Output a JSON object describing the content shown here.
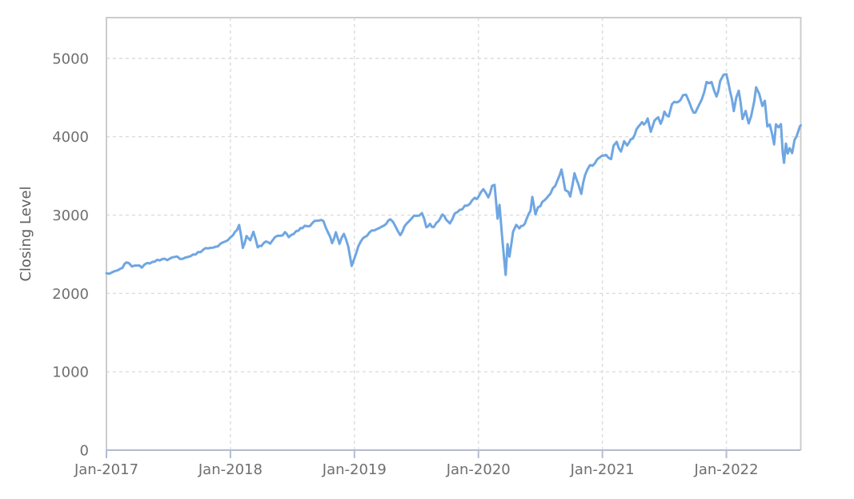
{
  "chart_data": {
    "type": "line",
    "title": "",
    "xlabel": "",
    "ylabel": "Closing Level",
    "legend": "none",
    "grid": "dashed",
    "xlim": [
      2017.0,
      2022.6
    ],
    "ylim": [
      0,
      5520
    ],
    "y_ticks": [
      0,
      1000,
      2000,
      3000,
      4000,
      5000
    ],
    "x_tick_positions": [
      2017,
      2018,
      2019,
      2020,
      2021,
      2022
    ],
    "x_tick_labels": [
      "Jan-2017",
      "Jan-2018",
      "Jan-2019",
      "Jan-2020",
      "Jan-2021",
      "Jan-2022"
    ],
    "colors": {
      "line": "#6fa6e2",
      "plot_border": "#cccccc",
      "grid": "#dcdcdc",
      "axis_line": "#b3bcd2",
      "tick_label": "#6f6f6f",
      "axis_title": "#5f5f5f",
      "background": "#ffffff"
    },
    "line_width": 3,
    "noise_amplitude": 24,
    "series": [
      {
        "name": "Closing Level",
        "points": [
          [
            2017.0,
            2257
          ],
          [
            2017.045,
            2269
          ],
          [
            2017.09,
            2294
          ],
          [
            2017.13,
            2328
          ],
          [
            2017.16,
            2396
          ],
          [
            2017.205,
            2344
          ],
          [
            2017.25,
            2356
          ],
          [
            2017.285,
            2329
          ],
          [
            2017.33,
            2389
          ],
          [
            2017.37,
            2402
          ],
          [
            2017.41,
            2430
          ],
          [
            2017.45,
            2438
          ],
          [
            2017.49,
            2425
          ],
          [
            2017.53,
            2460
          ],
          [
            2017.57,
            2472
          ],
          [
            2017.615,
            2441
          ],
          [
            2017.655,
            2465
          ],
          [
            2017.7,
            2497
          ],
          [
            2017.74,
            2529
          ],
          [
            2017.78,
            2557
          ],
          [
            2017.82,
            2575
          ],
          [
            2017.86,
            2584
          ],
          [
            2017.9,
            2602
          ],
          [
            2017.94,
            2652
          ],
          [
            2017.98,
            2680
          ],
          [
            2018.02,
            2743
          ],
          [
            2018.07,
            2873
          ],
          [
            2018.1,
            2581
          ],
          [
            2018.13,
            2732
          ],
          [
            2018.16,
            2678
          ],
          [
            2018.185,
            2787
          ],
          [
            2018.22,
            2588
          ],
          [
            2018.25,
            2605
          ],
          [
            2018.285,
            2663
          ],
          [
            2018.32,
            2635
          ],
          [
            2018.36,
            2720
          ],
          [
            2018.4,
            2735
          ],
          [
            2018.44,
            2782
          ],
          [
            2018.47,
            2718
          ],
          [
            2018.51,
            2759
          ],
          [
            2018.55,
            2802
          ],
          [
            2018.58,
            2833
          ],
          [
            2018.62,
            2857
          ],
          [
            2018.66,
            2897
          ],
          [
            2018.715,
            2931
          ],
          [
            2018.75,
            2924
          ],
          [
            2018.79,
            2768
          ],
          [
            2018.82,
            2641
          ],
          [
            2018.85,
            2781
          ],
          [
            2018.88,
            2633
          ],
          [
            2018.915,
            2760
          ],
          [
            2018.95,
            2600
          ],
          [
            2018.978,
            2351
          ],
          [
            2019.0,
            2448
          ],
          [
            2019.03,
            2596
          ],
          [
            2019.07,
            2707
          ],
          [
            2019.12,
            2776
          ],
          [
            2019.16,
            2804
          ],
          [
            2019.2,
            2834
          ],
          [
            2019.24,
            2867
          ],
          [
            2019.29,
            2946
          ],
          [
            2019.33,
            2860
          ],
          [
            2019.37,
            2744
          ],
          [
            2019.42,
            2890
          ],
          [
            2019.46,
            2954
          ],
          [
            2019.5,
            2990
          ],
          [
            2019.545,
            3026
          ],
          [
            2019.58,
            2845
          ],
          [
            2019.61,
            2889
          ],
          [
            2019.64,
            2847
          ],
          [
            2019.68,
            2926
          ],
          [
            2019.71,
            3007
          ],
          [
            2019.74,
            2940
          ],
          [
            2019.77,
            2893
          ],
          [
            2019.81,
            3022
          ],
          [
            2019.85,
            3067
          ],
          [
            2019.89,
            3120
          ],
          [
            2019.93,
            3141
          ],
          [
            2019.97,
            3221
          ],
          [
            2020.0,
            3231
          ],
          [
            2020.04,
            3330
          ],
          [
            2020.08,
            3226
          ],
          [
            2020.11,
            3373
          ],
          [
            2020.13,
            3386
          ],
          [
            2020.155,
            2954
          ],
          [
            2020.17,
            3130
          ],
          [
            2020.19,
            2741
          ],
          [
            2020.205,
            2481
          ],
          [
            2020.22,
            2237
          ],
          [
            2020.235,
            2630
          ],
          [
            2020.25,
            2470
          ],
          [
            2020.28,
            2790
          ],
          [
            2020.305,
            2874
          ],
          [
            2020.33,
            2831
          ],
          [
            2020.36,
            2864
          ],
          [
            2020.39,
            2955
          ],
          [
            2020.42,
            3055
          ],
          [
            2020.435,
            3232
          ],
          [
            2020.46,
            3009
          ],
          [
            2020.48,
            3098
          ],
          [
            2020.5,
            3116
          ],
          [
            2020.53,
            3185
          ],
          [
            2020.55,
            3216
          ],
          [
            2020.58,
            3271
          ],
          [
            2020.62,
            3373
          ],
          [
            2020.655,
            3508
          ],
          [
            2020.67,
            3581
          ],
          [
            2020.7,
            3319
          ],
          [
            2020.725,
            3298
          ],
          [
            2020.74,
            3237
          ],
          [
            2020.775,
            3534
          ],
          [
            2020.805,
            3400
          ],
          [
            2020.83,
            3270
          ],
          [
            2020.86,
            3510
          ],
          [
            2020.88,
            3585
          ],
          [
            2020.9,
            3638
          ],
          [
            2020.94,
            3662
          ],
          [
            2020.975,
            3732
          ],
          [
            2020.995,
            3756
          ],
          [
            2021.03,
            3768
          ],
          [
            2021.07,
            3714
          ],
          [
            2021.09,
            3886
          ],
          [
            2021.115,
            3935
          ],
          [
            2021.15,
            3811
          ],
          [
            2021.175,
            3943
          ],
          [
            2021.2,
            3889
          ],
          [
            2021.23,
            3969
          ],
          [
            2021.26,
            4020
          ],
          [
            2021.29,
            4129
          ],
          [
            2021.32,
            4185
          ],
          [
            2021.35,
            4181
          ],
          [
            2021.365,
            4233
          ],
          [
            2021.39,
            4063
          ],
          [
            2021.42,
            4204
          ],
          [
            2021.45,
            4247
          ],
          [
            2021.47,
            4166
          ],
          [
            2021.5,
            4320
          ],
          [
            2021.535,
            4258
          ],
          [
            2021.56,
            4412
          ],
          [
            2021.6,
            4437
          ],
          [
            2021.63,
            4468
          ],
          [
            2021.65,
            4529
          ],
          [
            2021.675,
            4537
          ],
          [
            2021.7,
            4443
          ],
          [
            2021.72,
            4358
          ],
          [
            2021.75,
            4308
          ],
          [
            2021.775,
            4391
          ],
          [
            2021.8,
            4471
          ],
          [
            2021.84,
            4698
          ],
          [
            2021.86,
            4683
          ],
          [
            2021.88,
            4698
          ],
          [
            2021.9,
            4595
          ],
          [
            2021.92,
            4513
          ],
          [
            2021.95,
            4710
          ],
          [
            2021.978,
            4791
          ],
          [
            2022.0,
            4797
          ],
          [
            2022.03,
            4578
          ],
          [
            2022.06,
            4327
          ],
          [
            2022.08,
            4500
          ],
          [
            2022.1,
            4587
          ],
          [
            2022.13,
            4226
          ],
          [
            2022.155,
            4329
          ],
          [
            2022.18,
            4170
          ],
          [
            2022.2,
            4263
          ],
          [
            2022.225,
            4456
          ],
          [
            2022.24,
            4631
          ],
          [
            2022.265,
            4546
          ],
          [
            2022.29,
            4393
          ],
          [
            2022.31,
            4459
          ],
          [
            2022.33,
            4132
          ],
          [
            2022.35,
            4155
          ],
          [
            2022.37,
            4024
          ],
          [
            2022.385,
            3901
          ],
          [
            2022.4,
            4158
          ],
          [
            2022.42,
            4121
          ],
          [
            2022.44,
            4160
          ],
          [
            2022.455,
            3790
          ],
          [
            2022.465,
            3667
          ],
          [
            2022.48,
            3912
          ],
          [
            2022.495,
            3785
          ],
          [
            2022.51,
            3854
          ],
          [
            2022.53,
            3790
          ],
          [
            2022.55,
            3963
          ],
          [
            2022.565,
            3999
          ],
          [
            2022.58,
            4072
          ],
          [
            2022.592,
            4130
          ],
          [
            2022.6,
            4145
          ]
        ]
      }
    ]
  }
}
